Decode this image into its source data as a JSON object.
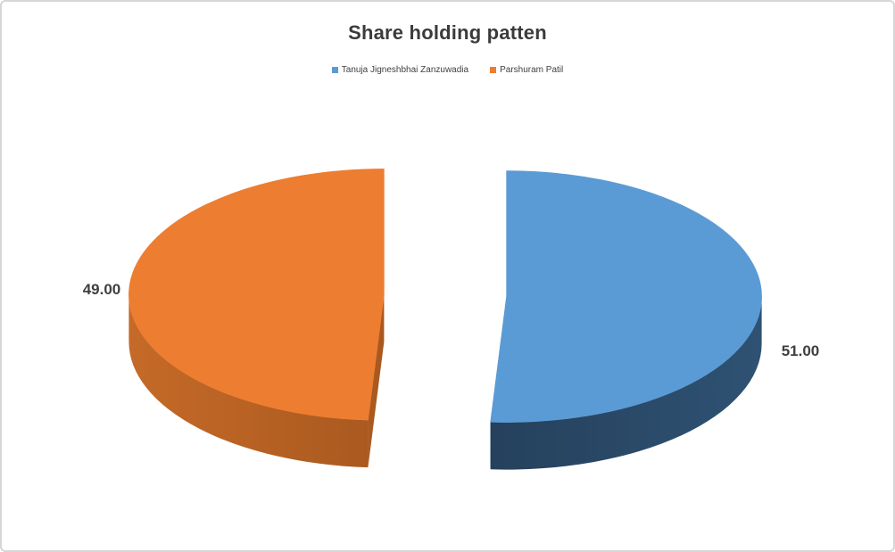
{
  "frame": {
    "background": "#FFFFFF",
    "border_color": "#D6D6D6"
  },
  "chart_data": {
    "type": "pie",
    "style": "3d-exploded-pie",
    "title": "Share holding patten",
    "categories": [
      "Tanuja Jigneshbhai Zanzuwadia",
      "Parshuram Patil"
    ],
    "values": [
      51,
      49
    ],
    "data_labels": [
      "51.00",
      "49.00"
    ],
    "colors": [
      "#5B9BD5",
      "#ED7D31"
    ],
    "rim_gradients": [
      [
        "#2F5273",
        "#1C3148"
      ],
      [
        "#C56A28",
        "#8C4716"
      ]
    ],
    "legend_position": "top",
    "start_angle_deg": -90,
    "clockwise": true,
    "explode_fraction": 0.24,
    "title_color": "#3B3B3B",
    "legend_text_color": "#404040",
    "data_label_color": "#3F3F3F"
  }
}
